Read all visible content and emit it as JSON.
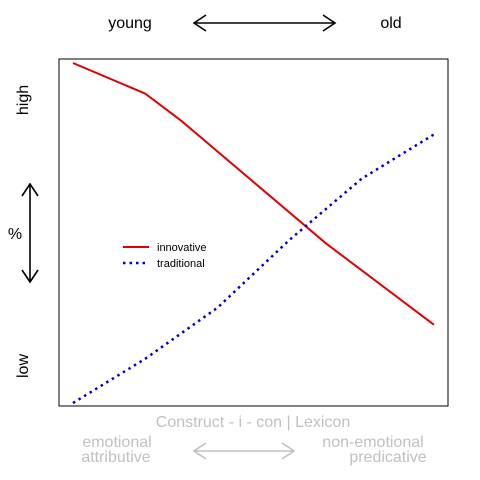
{
  "chart_data": {
    "type": "line",
    "top_labels": {
      "left": "young",
      "right": "old"
    },
    "left_labels": {
      "top": "high",
      "middle": "%",
      "bottom": "low"
    },
    "bottom_labels": {
      "title": "Construct - i - con | Lexicon",
      "left_line1": "emotional",
      "left_line2": "attributive",
      "right_line1": "non-emotional",
      "right_line2": "predicative"
    },
    "xlim": [
      0,
      1
    ],
    "ylim": [
      0,
      1
    ],
    "grid": false,
    "legend_position": "center-left",
    "series": [
      {
        "name": "innovative",
        "color": "#e00000",
        "style": "solid",
        "x": [
          0,
          0.2,
          0.3,
          0.5,
          0.7,
          1
        ],
        "y": [
          1.0,
          0.91,
          0.83,
          0.65,
          0.47,
          0.23
        ]
      },
      {
        "name": "traditional",
        "color": "#0000cc",
        "style": "dotted",
        "x": [
          0,
          0.2,
          0.4,
          0.6,
          0.8,
          1
        ],
        "y": [
          0.0,
          0.13,
          0.28,
          0.48,
          0.66,
          0.79
        ]
      }
    ],
    "colors": {
      "accent_gray": "#c0c0c0",
      "text": "#000000"
    }
  }
}
